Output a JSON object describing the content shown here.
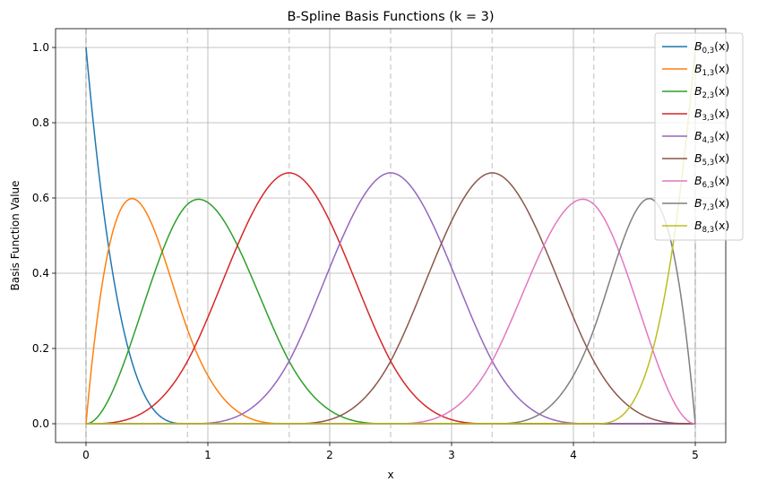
{
  "chart_data": {
    "type": "line",
    "title": "B-Spline Basis Functions (k = 3)",
    "xlabel": "x",
    "ylabel": "Basis Function Value",
    "xlim": [
      -0.25,
      5.25
    ],
    "ylim": [
      -0.05,
      1.05
    ],
    "xticks": [
      0,
      1,
      2,
      3,
      4,
      5
    ],
    "yticks": [
      0.0,
      0.2,
      0.4,
      0.6,
      0.8,
      1.0
    ],
    "xtick_labels": [
      "0",
      "1",
      "2",
      "3",
      "4",
      "5"
    ],
    "ytick_labels": [
      "0.0",
      "0.2",
      "0.4",
      "0.6",
      "0.8",
      "1.0"
    ],
    "grid": true,
    "legend_position": "top-right",
    "degree": 3,
    "knots": [
      0,
      0,
      0,
      0,
      0.8333,
      1.6667,
      2.5,
      3.3333,
      4.1667,
      5,
      5,
      5,
      5
    ],
    "knot_lines": [
      0,
      0.8333,
      1.6667,
      2.5,
      3.3333,
      4.1667,
      5
    ],
    "series": [
      {
        "name": "B0,3(x)",
        "name_base": "B",
        "name_sub": "0,3",
        "name_arg": "(x)",
        "color": "#1f77b4"
      },
      {
        "name": "B1,3(x)",
        "name_base": "B",
        "name_sub": "1,3",
        "name_arg": "(x)",
        "color": "#ff7f0e"
      },
      {
        "name": "B2,3(x)",
        "name_base": "B",
        "name_sub": "2,3",
        "name_arg": "(x)",
        "color": "#2ca02c"
      },
      {
        "name": "B3,3(x)",
        "name_base": "B",
        "name_sub": "3,3",
        "name_arg": "(x)",
        "color": "#d62728"
      },
      {
        "name": "B4,3(x)",
        "name_base": "B",
        "name_sub": "4,3",
        "name_arg": "(x)",
        "color": "#9467bd"
      },
      {
        "name": "B5,3(x)",
        "name_base": "B",
        "name_sub": "5,3",
        "name_arg": "(x)",
        "color": "#8c564b"
      },
      {
        "name": "B6,3(x)",
        "name_base": "B",
        "name_sub": "6,3",
        "name_arg": "(x)",
        "color": "#e377c2"
      },
      {
        "name": "B7,3(x)",
        "name_base": "B",
        "name_sub": "7,3",
        "name_arg": "(x)",
        "color": "#7f7f7f"
      },
      {
        "name": "B8,3(x)",
        "name_base": "B",
        "name_sub": "8,3",
        "name_arg": "(x)",
        "color": "#bcbd22"
      }
    ]
  }
}
